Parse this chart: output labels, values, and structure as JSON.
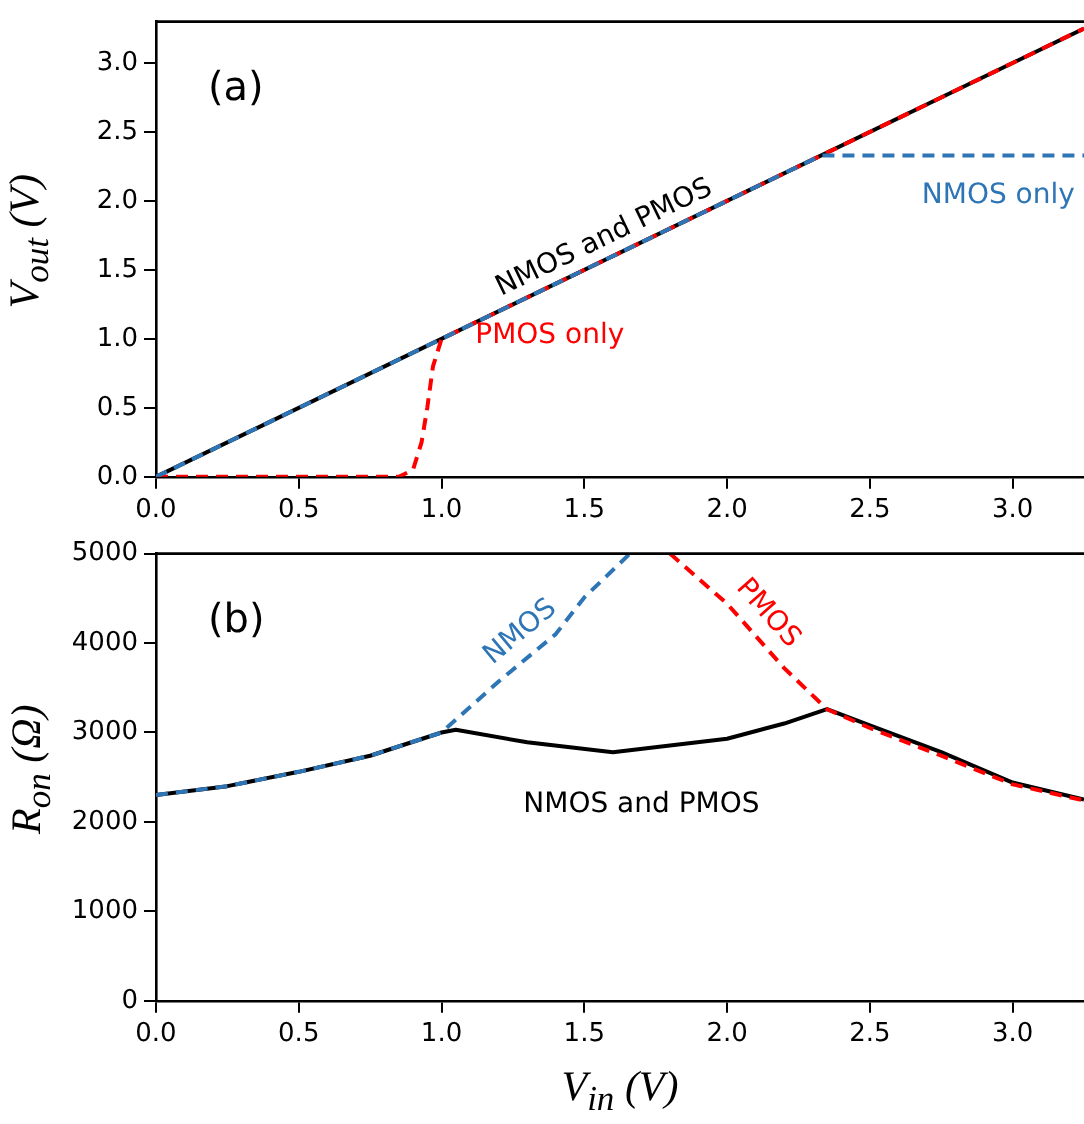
{
  "chart_data": [
    {
      "type": "line",
      "ylabel": "V$_{out}$ (V)",
      "annotations": [
        "(a)"
      ],
      "xlim": [
        0,
        3.25
      ],
      "ylim": [
        0,
        3.3
      ],
      "xticks": [
        {
          "value": 0,
          "label": "0.0"
        },
        0.5,
        {
          "value": 1,
          "label": "1.0"
        },
        1.5,
        {
          "value": 2,
          "label": "2.0"
        },
        2.5,
        {
          "value": 3,
          "label": "3.0"
        }
      ],
      "yticks": [
        {
          "value": 0,
          "label": "0.0"
        },
        0.5,
        {
          "value": 1,
          "label": "1.0"
        },
        1.5,
        {
          "value": 2,
          "label": "2.0"
        },
        2.5,
        {
          "value": 3,
          "label": "3.0"
        }
      ],
      "grid": false,
      "legend": false,
      "series": [
        {
          "name": "NMOS and PMOS",
          "color": "#000000",
          "line_style": "solid",
          "x": [
            0,
            3.25
          ],
          "values": [
            0,
            3.25
          ]
        },
        {
          "name": "NMOS only",
          "color": "#2e75b6",
          "line_style": "dashed",
          "x": [
            0,
            2.33,
            3.25
          ],
          "values": [
            0,
            2.33,
            2.33
          ]
        },
        {
          "name": "PMOS only",
          "color": "#ff0000",
          "line_style": "dashed",
          "x": [
            0,
            0.85,
            0.9,
            0.93,
            0.95,
            0.97,
            1.0,
            3.25
          ],
          "values": [
            0,
            0,
            0.05,
            0.25,
            0.5,
            0.8,
            1.0,
            3.25
          ]
        }
      ]
    },
    {
      "type": "line",
      "xlabel": "V$_{in}$ (V)",
      "ylabel": "R$_{on}$ (Ω)",
      "annotations": [
        "(b)"
      ],
      "xlim": [
        0,
        3.25
      ],
      "ylim": [
        0,
        5000
      ],
      "xticks": [
        {
          "value": 0,
          "label": "0.0"
        },
        0.5,
        {
          "value": 1,
          "label": "1.0"
        },
        1.5,
        {
          "value": 2,
          "label": "2.0"
        },
        2.5,
        {
          "value": 3,
          "label": "3.0"
        }
      ],
      "yticks": [
        0,
        1000,
        2000,
        3000,
        4000,
        5000
      ],
      "grid": false,
      "legend": false,
      "series": [
        {
          "name": "NMOS",
          "color": "#2e75b6",
          "line_style": "dashed",
          "x": [
            0,
            0.25,
            0.5,
            0.75,
            1.0,
            1.2,
            1.4,
            1.5,
            1.66
          ],
          "values": [
            2300,
            2400,
            2560,
            2740,
            3000,
            3570,
            4100,
            4510,
            5000
          ]
        },
        {
          "name": "PMOS",
          "color": "#ff0000",
          "line_style": "dashed",
          "x": [
            1.8,
            2.0,
            2.2,
            2.35,
            2.5,
            2.75,
            3.0,
            3.25
          ],
          "values": [
            5000,
            4440,
            3720,
            3260,
            3050,
            2740,
            2420,
            2240
          ]
        },
        {
          "name": "NMOS and PMOS",
          "color": "#000000",
          "line_style": "solid",
          "x": [
            0,
            0.25,
            0.5,
            0.75,
            1.0,
            1.05,
            1.3,
            1.6,
            2.0,
            2.2,
            2.35,
            2.5,
            2.75,
            3.0,
            3.25
          ],
          "values": [
            2300,
            2400,
            2560,
            2740,
            3000,
            3030,
            2890,
            2780,
            2930,
            3100,
            3260,
            3080,
            2780,
            2440,
            2250
          ]
        }
      ]
    }
  ]
}
